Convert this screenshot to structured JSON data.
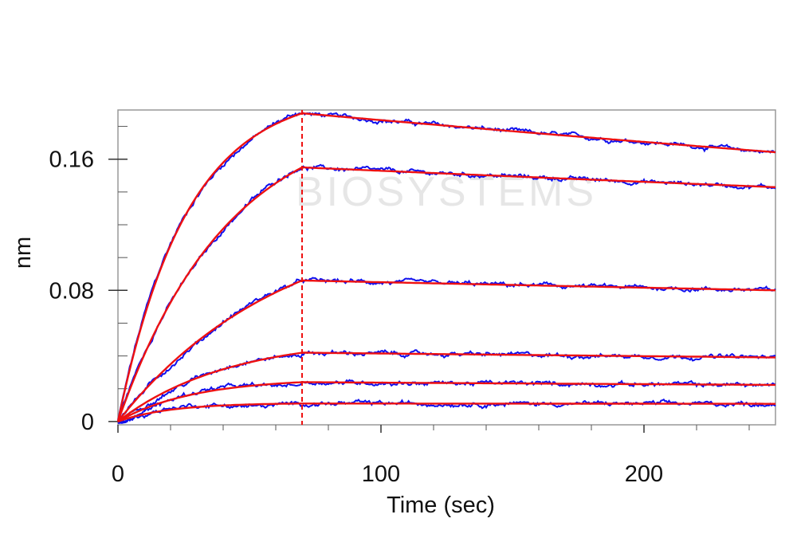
{
  "chart_data": {
    "type": "line",
    "title": "",
    "xlabel": "Time (sec)",
    "ylabel": "nm",
    "xlim": [
      0,
      250
    ],
    "ylim": [
      -0.002,
      0.19
    ],
    "x_ticks": [
      0,
      100,
      200
    ],
    "x_tick_labels": [
      "0",
      "100",
      "200"
    ],
    "y_ticks": [
      0,
      0.08,
      0.16
    ],
    "y_tick_labels": [
      "0",
      "0.08",
      "0.16"
    ],
    "vline_x": 70,
    "grid": false,
    "legend": "none",
    "association_end": 70,
    "end_time": 250,
    "curves": [
      {
        "plateau": 0.188,
        "k_on": 0.038,
        "k_off": 0.00075
      },
      {
        "plateau": 0.155,
        "k_on": 0.024,
        "k_off": 0.00045
      },
      {
        "plateau": 0.086,
        "k_on": 0.016,
        "k_off": 0.0004
      },
      {
        "plateau": 0.042,
        "k_on": 0.024,
        "k_off": 0.0004
      },
      {
        "plateau": 0.024,
        "k_on": 0.035,
        "k_off": 0.0004
      },
      {
        "plateau": 0.011,
        "k_on": 0.05,
        "k_off": 0.0001
      }
    ],
    "colors": {
      "measured": "#1010ee",
      "fit": "#ee1111",
      "vline": "#ee1111",
      "frame": "#999999"
    },
    "watermark": "BIOSYSTEMS"
  }
}
